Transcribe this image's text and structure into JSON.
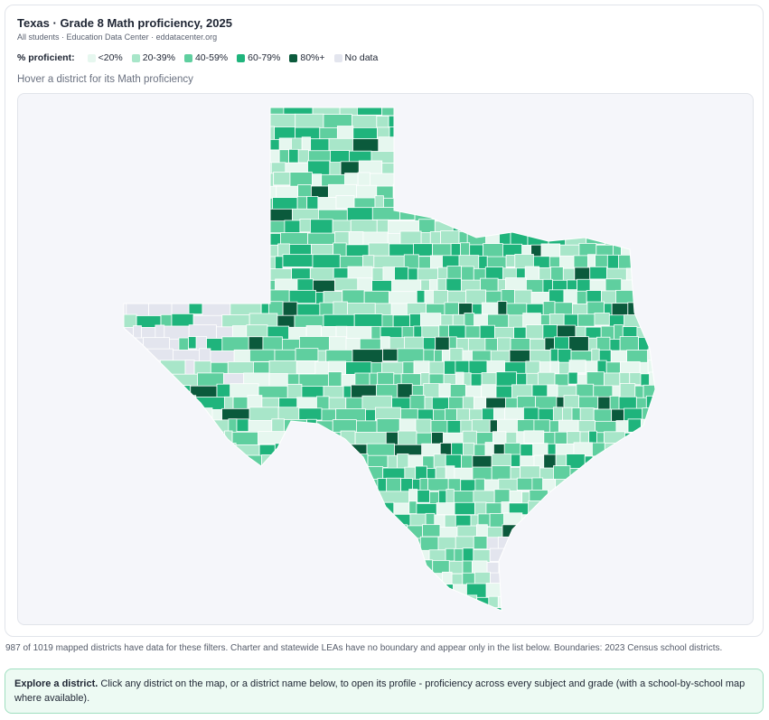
{
  "header": {
    "title": "Texas · Grade 8 Math proficiency, 2025",
    "subtitle": "All students · Education Data Center · eddatacenter.org"
  },
  "legend": {
    "label": "% proficient:",
    "items": [
      {
        "label": "<20%",
        "color": "#e6f7ef"
      },
      {
        "label": "20-39%",
        "color": "#a8e6c9"
      },
      {
        "label": "40-59%",
        "color": "#5fcf9f"
      },
      {
        "label": "60-79%",
        "color": "#1fb47c"
      },
      {
        "label": "80%+",
        "color": "#0b5a3c"
      },
      {
        "label": "No data",
        "color": "#e3e5ee"
      }
    ]
  },
  "hint": "Hover a district for its Math proficiency",
  "footnote": "987 of 1019 mapped districts have data for these filters. Charter and statewide LEAs have no boundary and appear only in the list below. Boundaries: 2023 Census school districts.",
  "explore": {
    "heading": "Explore a district.",
    "text": "Click any district on the map, or a district name below, to open its profile - proficiency across every subject and grade (with a school-by-school map where available)."
  }
}
